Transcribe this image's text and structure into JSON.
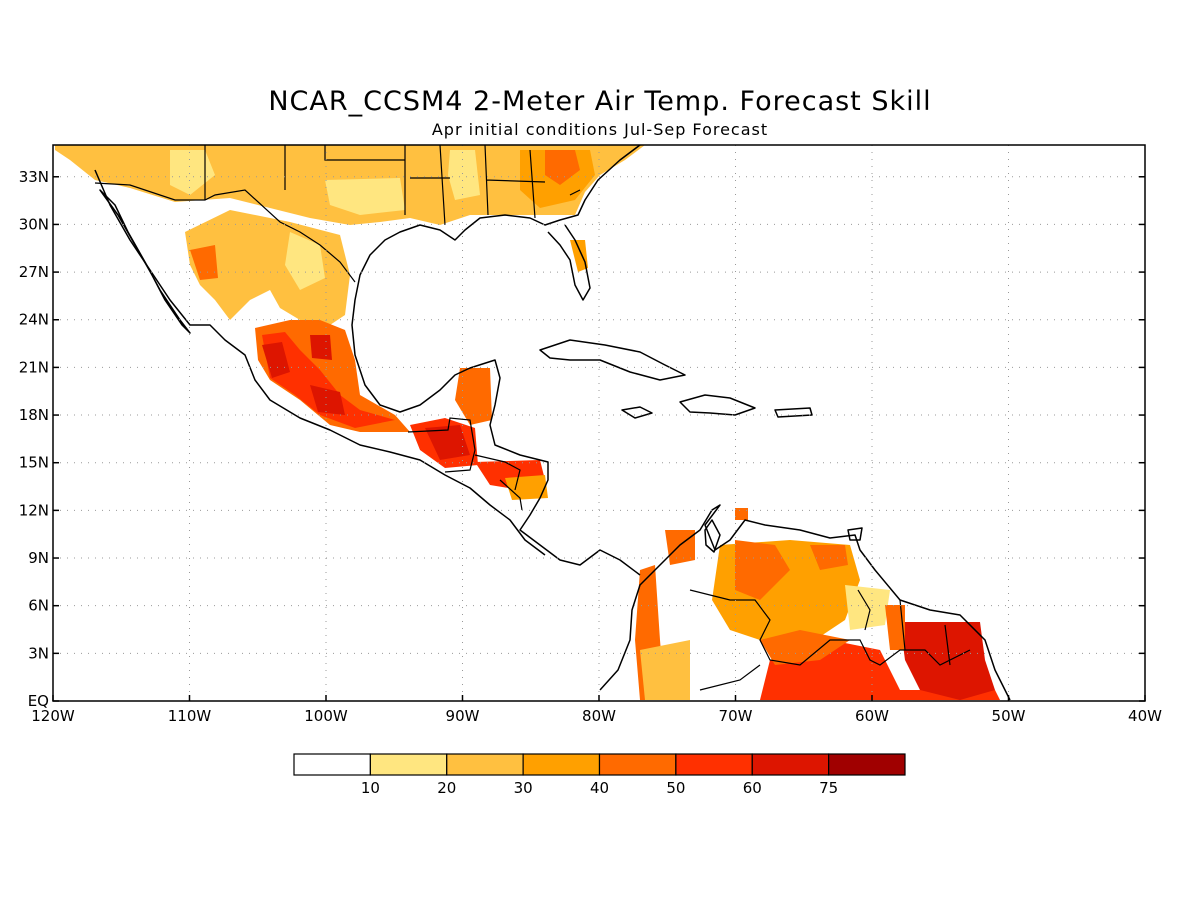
{
  "title": "NCAR_CCSM4 2-Meter Air Temp. Forecast Skill",
  "subtitle": "Apr initial conditions  Jul-Sep Forecast",
  "map": {
    "lon_range": [
      -120,
      -40
    ],
    "lat_range": [
      0,
      35
    ],
    "lon_ticks": [
      {
        "value": -120,
        "label": "120W"
      },
      {
        "value": -110,
        "label": "110W"
      },
      {
        "value": -100,
        "label": "100W"
      },
      {
        "value": -90,
        "label": "90W"
      },
      {
        "value": -80,
        "label": "80W"
      },
      {
        "value": -70,
        "label": "70W"
      },
      {
        "value": -60,
        "label": "60W"
      },
      {
        "value": -50,
        "label": "50W"
      },
      {
        "value": -40,
        "label": "40W"
      }
    ],
    "lat_ticks": [
      {
        "value": 0,
        "label": "EQ"
      },
      {
        "value": 3,
        "label": "3N"
      },
      {
        "value": 6,
        "label": "6N"
      },
      {
        "value": 9,
        "label": "9N"
      },
      {
        "value": 12,
        "label": "12N"
      },
      {
        "value": 15,
        "label": "15N"
      },
      {
        "value": 18,
        "label": "18N"
      },
      {
        "value": 21,
        "label": "21N"
      },
      {
        "value": 24,
        "label": "24N"
      },
      {
        "value": 27,
        "label": "27N"
      },
      {
        "value": 30,
        "label": "30N"
      },
      {
        "value": 33,
        "label": "33N"
      }
    ],
    "grid": "dotted"
  },
  "colorbar": {
    "labels": [
      "10",
      "20",
      "30",
      "40",
      "50",
      "60",
      "75"
    ],
    "colors": [
      "#ffffff",
      "#ffe680",
      "#ffc040",
      "#ffa000",
      "#ff6a00",
      "#ff3000",
      "#dd1500",
      "#a00000"
    ]
  },
  "chart_data": {
    "type": "heatmap",
    "title": "NCAR_CCSM4 2-Meter Air Temp. Forecast Skill",
    "subtitle": "Apr initial conditions  Jul-Sep Forecast",
    "xlim": [
      -120,
      -40
    ],
    "ylim": [
      0,
      35
    ],
    "levels": [
      10,
      20,
      30,
      40,
      50,
      60,
      75
    ],
    "regions": [
      {
        "lon": [
          -120,
          -103
        ],
        "lat": [
          30,
          35
        ],
        "value": 25
      },
      {
        "lon": [
          -103,
          -97
        ],
        "lat": [
          31,
          35
        ],
        "value": 35
      },
      {
        "lon": [
          -97,
          -91
        ],
        "lat": [
          30,
          35
        ],
        "value": 15
      },
      {
        "lon": [
          -91,
          -84
        ],
        "lat": [
          30,
          35
        ],
        "value": 35
      },
      {
        "lon": [
          -84,
          -80
        ],
        "lat": [
          30,
          35
        ],
        "value": 45
      },
      {
        "lon": [
          -110,
          -103
        ],
        "lat": [
          24,
          30
        ],
        "value": 35
      },
      {
        "lon": [
          -103,
          -97
        ],
        "lat": [
          24,
          29
        ],
        "value": 25
      },
      {
        "lon": [
          -105,
          -101
        ],
        "lat": [
          18,
          23
        ],
        "value": 65
      },
      {
        "lon": [
          -101,
          -97
        ],
        "lat": [
          16,
          22
        ],
        "value": 60
      },
      {
        "lon": [
          -93,
          -88
        ],
        "lat": [
          14,
          18
        ],
        "value": 65
      },
      {
        "lon": [
          -91,
          -88
        ],
        "lat": [
          17,
          21
        ],
        "value": 55
      },
      {
        "lon": [
          -89,
          -84
        ],
        "lat": [
          12.5,
          15.5
        ],
        "value": 55
      },
      {
        "lon": [
          -78,
          -73
        ],
        "lat": [
          0,
          9
        ],
        "value": 45
      },
      {
        "lon": [
          -73,
          -63
        ],
        "lat": [
          4,
          10
        ],
        "value": 40
      },
      {
        "lon": [
          -63,
          -57
        ],
        "lat": [
          4,
          10
        ],
        "value": 25
      },
      {
        "lon": [
          -70,
          -56
        ],
        "lat": [
          0,
          4
        ],
        "value": 55
      },
      {
        "lon": [
          -57,
          -51
        ],
        "lat": [
          0,
          5
        ],
        "value": 65
      }
    ]
  }
}
